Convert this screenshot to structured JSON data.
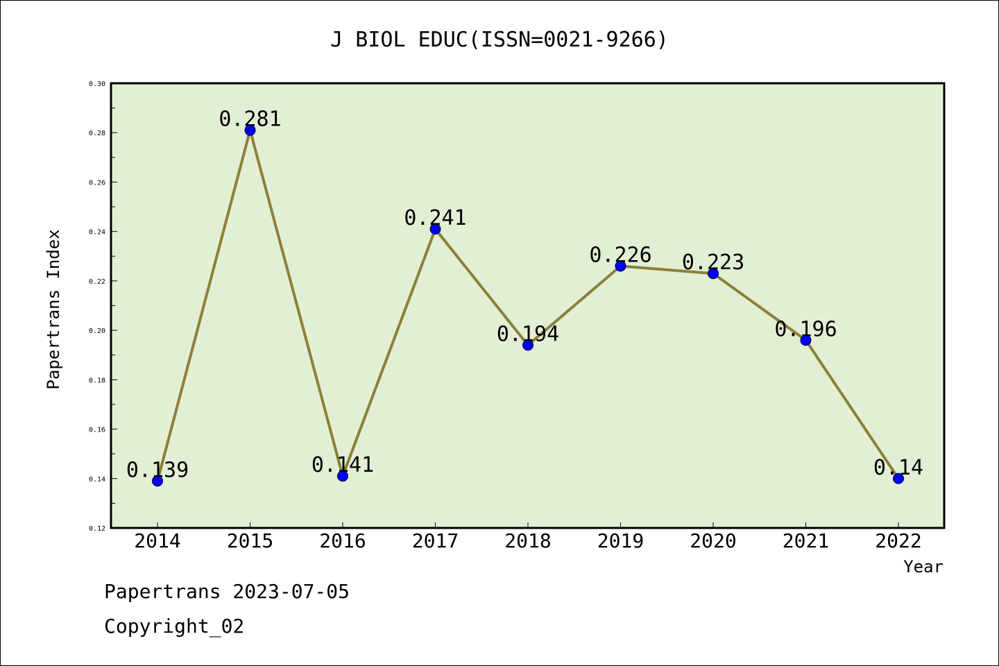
{
  "chart_data": {
    "type": "line",
    "title": "J BIOL EDUC(ISSN=0021-9266)",
    "xlabel": "Year",
    "ylabel": "Papertrans Index",
    "categories": [
      "2014",
      "2015",
      "2016",
      "2017",
      "2018",
      "2019",
      "2020",
      "2021",
      "2022"
    ],
    "values": [
      0.139,
      0.281,
      0.141,
      0.241,
      0.194,
      0.226,
      0.223,
      0.196,
      0.14
    ],
    "data_labels": [
      "0.139",
      "0.281",
      "0.141",
      "0.241",
      "0.194",
      "0.226",
      "0.223",
      "0.196",
      "0.14"
    ],
    "ylim": [
      0.12,
      0.3
    ],
    "yticks": [
      "0.12",
      "0.14",
      "0.16",
      "0.18",
      "0.20",
      "0.22",
      "0.24",
      "0.26",
      "0.28",
      "0.30"
    ],
    "grid": false,
    "colors": {
      "plot_background": "#e2efd5",
      "line": "#8b8038",
      "marker": "#0000ff"
    }
  },
  "footer": {
    "date_line": "Papertrans 2023-07-05",
    "copyright_line": "Copyright_02"
  }
}
